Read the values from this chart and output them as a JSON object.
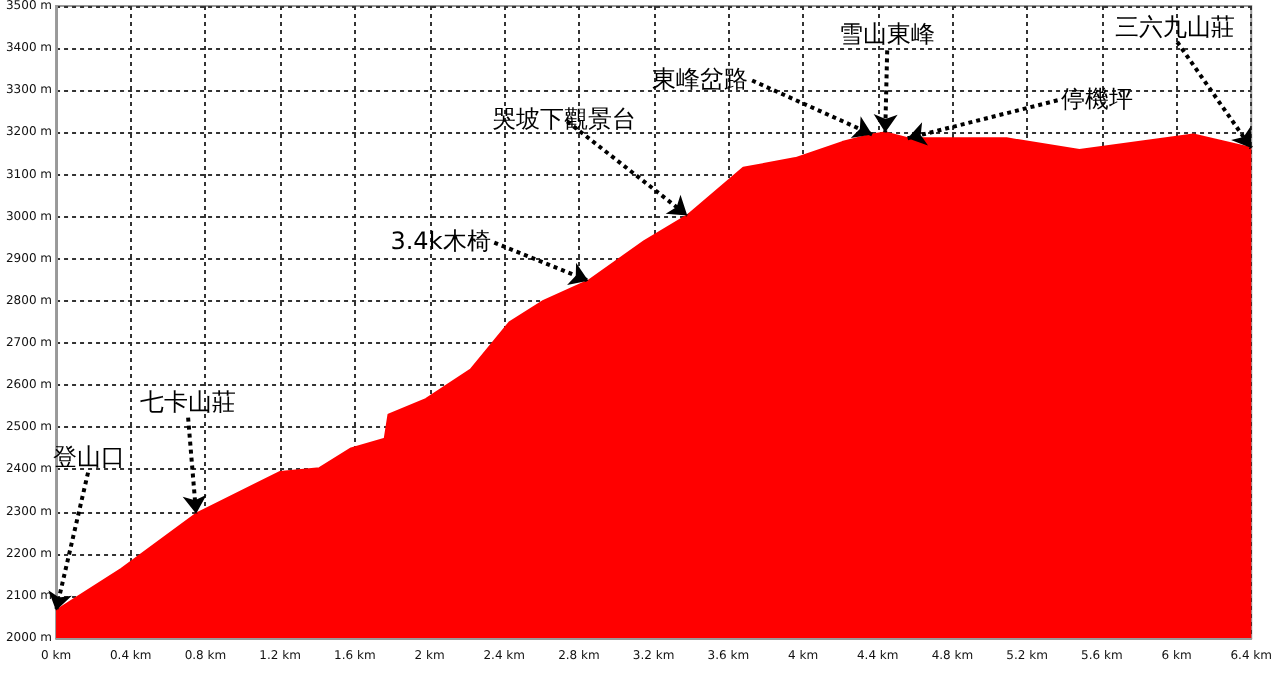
{
  "chart_data": {
    "type": "area",
    "x": [
      0,
      0.35,
      0.75,
      1.2,
      1.41,
      1.58,
      1.76,
      1.78,
      1.98,
      2.22,
      2.43,
      2.61,
      2.85,
      3.15,
      3.38,
      3.68,
      3.96,
      4.21,
      4.37,
      4.44,
      4.56,
      5.09,
      5.48,
      6.09,
      6.4
    ],
    "series": [
      {
        "color": "#ff0000",
        "values": [
          2065,
          2164,
          2295,
          2394,
          2403,
          2450,
          2473,
          2530,
          2567,
          2637,
          2750,
          2800,
          2848,
          2942,
          3003,
          3116,
          3139,
          3177,
          3195,
          3200,
          3186,
          3186,
          3158,
          3195,
          3163
        ]
      }
    ],
    "xlim": [
      0,
      6.4
    ],
    "xticks": [
      {
        "value": 0,
        "label": "0 km"
      },
      {
        "value": 0.4,
        "label": "0.4 km"
      },
      {
        "value": 0.8,
        "label": "0.8 km"
      },
      {
        "value": 1.2,
        "label": "1.2 km"
      },
      {
        "value": 1.6,
        "label": "1.6 km"
      },
      {
        "value": 2,
        "label": "2 km"
      },
      {
        "value": 2.4,
        "label": "2.4 km"
      },
      {
        "value": 2.8,
        "label": "2.8 km"
      },
      {
        "value": 3.2,
        "label": "3.2 km"
      },
      {
        "value": 3.6,
        "label": "3.6 km"
      },
      {
        "value": 4,
        "label": "4 km"
      },
      {
        "value": 4.4,
        "label": "4.4 km"
      },
      {
        "value": 4.8,
        "label": "4.8 km"
      },
      {
        "value": 5.2,
        "label": "5.2 km"
      },
      {
        "value": 5.6,
        "label": "5.6 km"
      },
      {
        "value": 6,
        "label": "6 km"
      },
      {
        "value": 6.4,
        "label": "6.4 km"
      }
    ],
    "ylim": [
      2000,
      3500
    ],
    "yticks": [
      {
        "value": 2000,
        "label": "2000 m"
      },
      {
        "value": 2100,
        "label": "2100 m"
      },
      {
        "value": 2200,
        "label": "2200 m"
      },
      {
        "value": 2300,
        "label": "2300 m"
      },
      {
        "value": 2400,
        "label": "2400 m"
      },
      {
        "value": 2500,
        "label": "2500 m"
      },
      {
        "value": 2600,
        "label": "2600 m"
      },
      {
        "value": 2700,
        "label": "2700 m"
      },
      {
        "value": 2800,
        "label": "2800 m"
      },
      {
        "value": 2900,
        "label": "2900 m"
      },
      {
        "value": 3000,
        "label": "3000 m"
      },
      {
        "value": 3100,
        "label": "3100 m"
      },
      {
        "value": 3200,
        "label": "3200 m"
      },
      {
        "value": 3300,
        "label": "3300 m"
      },
      {
        "value": 3400,
        "label": "3400 m"
      },
      {
        "value": 3500,
        "label": "3500 m"
      }
    ],
    "grid": true,
    "marker": "none",
    "line_style": "solid",
    "annotations": [
      {
        "text": "登山口",
        "x": 0,
        "y": 2065
      },
      {
        "text": "七卡山莊",
        "x": 0.75,
        "y": 2295
      },
      {
        "text": "3.4k木椅",
        "x": 2.85,
        "y": 2848
      },
      {
        "text": "哭坡下觀景台",
        "x": 3.38,
        "y": 3003
      },
      {
        "text": "東峰岔路",
        "x": 4.37,
        "y": 3195
      },
      {
        "text": "雪山東峰",
        "x": 4.44,
        "y": 3200
      },
      {
        "text": "停機坪",
        "x": 4.56,
        "y": 3186
      },
      {
        "text": "三六九山莊",
        "x": 6.4,
        "y": 3163
      }
    ]
  }
}
